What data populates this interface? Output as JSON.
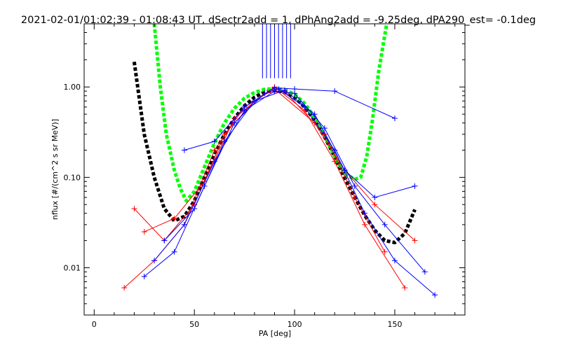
{
  "chart_data": {
    "type": "line",
    "title": "2021-02-01/01:02:39 - 01:08:43 UT, dSectr2add = 1, dPhAng2add = -9.25deg, dPA290_est=  -0.1deg",
    "xlabel": "PA [deg]",
    "ylabel": "nflux [#/(cm^2 s sr MeV)]",
    "xlim": [
      -5,
      185
    ],
    "ylim": [
      0.003,
      5
    ],
    "yscale": "log",
    "xticks": [
      0,
      50,
      100,
      150
    ],
    "xtick_labels": [
      "0",
      "50",
      "100",
      "150"
    ],
    "yticks": [
      0.01,
      0.1,
      1
    ],
    "ytick_labels": [
      "0.01",
      "0.10",
      "1.00"
    ],
    "colors": {
      "red": "#ff0000",
      "blue": "#0000ff",
      "black": "#000000",
      "green": "#00ff00"
    },
    "series": [
      {
        "name": "black-fit",
        "style": "dashed-thick",
        "color": "#000000",
        "x": [
          20,
          25,
          30,
          35,
          40,
          45,
          50,
          55,
          60,
          65,
          70,
          75,
          80,
          85,
          90,
          95,
          100,
          105,
          110,
          115,
          120,
          125,
          130,
          135,
          140,
          145,
          150,
          155,
          160
        ],
        "y": [
          1.9,
          0.3,
          0.1,
          0.045,
          0.033,
          0.037,
          0.055,
          0.1,
          0.18,
          0.3,
          0.45,
          0.62,
          0.77,
          0.88,
          0.92,
          0.88,
          0.77,
          0.6,
          0.43,
          0.28,
          0.17,
          0.1,
          0.06,
          0.038,
          0.026,
          0.02,
          0.019,
          0.024,
          0.044
        ]
      },
      {
        "name": "green-fit",
        "style": "dashed-thick",
        "color": "#00ff00",
        "x": [
          30,
          33,
          36,
          40,
          43,
          46,
          50,
          55,
          60,
          65,
          70,
          75,
          80,
          85,
          90,
          95,
          100,
          105,
          110,
          115,
          120,
          125,
          130,
          133,
          136,
          139,
          142,
          146
        ],
        "y": [
          5,
          1.0,
          0.3,
          0.12,
          0.075,
          0.055,
          0.07,
          0.13,
          0.24,
          0.4,
          0.58,
          0.75,
          0.87,
          0.94,
          0.96,
          0.93,
          0.83,
          0.66,
          0.46,
          0.29,
          0.17,
          0.11,
          0.095,
          0.1,
          0.17,
          0.45,
          1.5,
          5
        ]
      },
      {
        "name": "red-data-1",
        "color": "#ff0000",
        "x": [
          20,
          35,
          50,
          65,
          80,
          90,
          105,
          120,
          135,
          155
        ],
        "y": [
          0.045,
          0.02,
          0.05,
          0.3,
          0.7,
          1.0,
          0.55,
          0.15,
          0.03,
          0.006
        ]
      },
      {
        "name": "red-data-2",
        "color": "#ff0000",
        "x": [
          15,
          30,
          45,
          60,
          75,
          90,
          110,
          125,
          140,
          160
        ],
        "y": [
          0.006,
          0.012,
          0.03,
          0.2,
          0.6,
          0.95,
          0.4,
          0.12,
          0.05,
          0.02
        ]
      },
      {
        "name": "red-data-3",
        "color": "#ff0000",
        "x": [
          25,
          40,
          55,
          70,
          85,
          95,
          115,
          130,
          145
        ],
        "y": [
          0.025,
          0.035,
          0.09,
          0.45,
          0.85,
          0.9,
          0.3,
          0.06,
          0.015
        ]
      },
      {
        "name": "blue-data-1",
        "color": "#0000ff",
        "x": [
          25,
          40,
          55,
          70,
          85,
          92,
          105,
          120,
          135,
          150,
          170
        ],
        "y": [
          0.008,
          0.015,
          0.08,
          0.4,
          0.85,
          0.95,
          0.6,
          0.2,
          0.04,
          0.012,
          0.005
        ]
      },
      {
        "name": "blue-data-2",
        "color": "#0000ff",
        "x": [
          30,
          45,
          60,
          75,
          90,
          100,
          115,
          130,
          145,
          165
        ],
        "y": [
          0.012,
          0.03,
          0.15,
          0.55,
          0.9,
          0.85,
          0.35,
          0.08,
          0.03,
          0.009
        ]
      },
      {
        "name": "blue-data-3",
        "color": "#0000ff",
        "x": [
          35,
          50,
          65,
          80,
          95,
          110,
          125,
          140,
          160
        ],
        "y": [
          0.02,
          0.045,
          0.25,
          0.7,
          0.92,
          0.5,
          0.12,
          0.06,
          0.08
        ]
      },
      {
        "name": "blue-data-4",
        "color": "#0000ff",
        "x": [
          45,
          60,
          75,
          90,
          100,
          120,
          150
        ],
        "y": [
          0.2,
          0.25,
          0.6,
          0.98,
          0.95,
          0.9,
          0.45
        ]
      }
    ],
    "spikes": {
      "name": "spikes",
      "color": "#0000ff",
      "x": [
        84,
        86,
        88,
        90,
        92,
        94,
        96,
        98
      ],
      "y_from": 1.25,
      "y_to": 5
    }
  }
}
